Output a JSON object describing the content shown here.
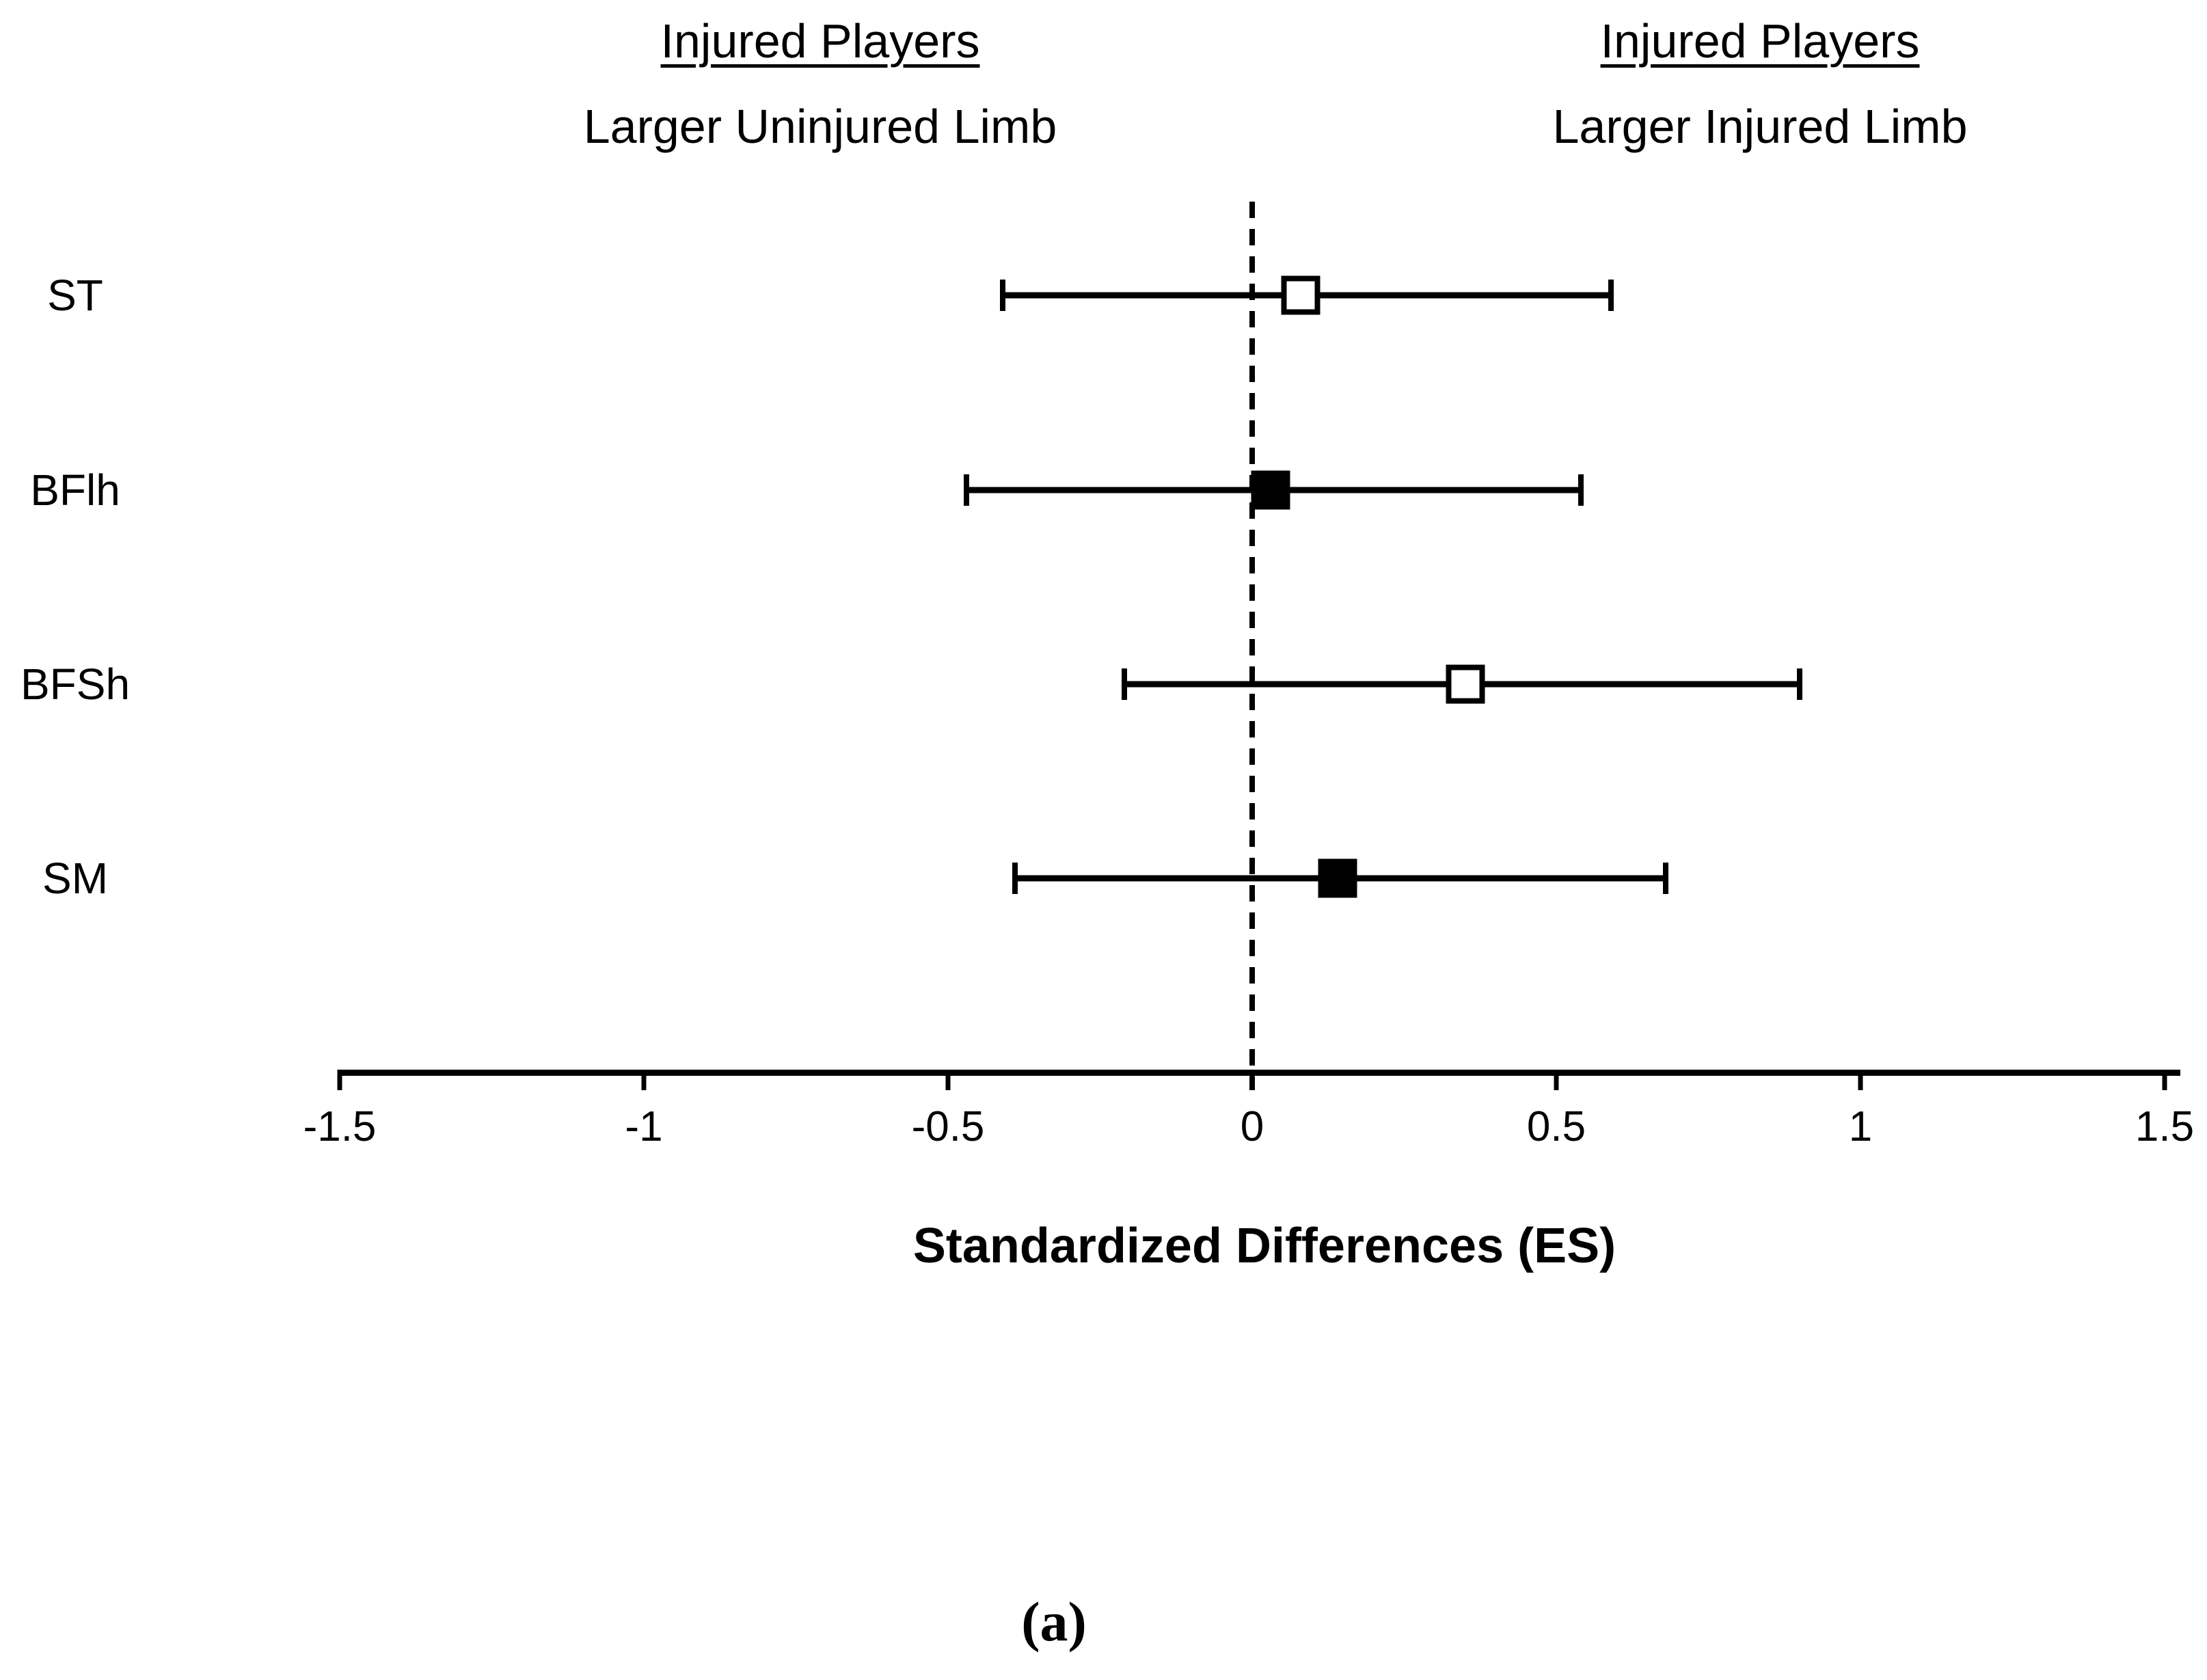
{
  "figure": {
    "left_header": {
      "line1": "Injured Players",
      "line2": "Larger Uninjured Limb"
    },
    "right_header": {
      "line1": "Injured Players",
      "line2": "Larger Injured Limb"
    },
    "caption": "(a)",
    "colors": {
      "foreground": "#000000",
      "background": "#ffffff"
    }
  },
  "chart_data": {
    "type": "scatter",
    "subtype": "forest-plot",
    "orientation": "horizontal",
    "title": "",
    "xlabel": "Standardized Differences (ES)",
    "ylabel": "",
    "xlim": [
      -1.5,
      1.5
    ],
    "x_ticks": [
      -1.5,
      -1,
      -0.5,
      0,
      0.5,
      1,
      1.5
    ],
    "x_tick_labels": [
      "-1.5",
      "-1",
      "-0.5",
      "0",
      "0.5",
      "1",
      "1.5"
    ],
    "grid": false,
    "zero_reference_line": {
      "x": 0,
      "style": "dashed"
    },
    "rows": [
      {
        "label": "ST",
        "es": 0.08,
        "ci_low": -0.41,
        "ci_high": 0.59,
        "marker": "open-square"
      },
      {
        "label": "BFlh",
        "es": 0.03,
        "ci_low": -0.47,
        "ci_high": 0.54,
        "marker": "filled-square"
      },
      {
        "label": "BFSh",
        "es": 0.35,
        "ci_low": -0.21,
        "ci_high": 0.9,
        "marker": "open-square"
      },
      {
        "label": "SM",
        "es": 0.14,
        "ci_low": -0.39,
        "ci_high": 0.68,
        "marker": "filled-square"
      }
    ]
  }
}
